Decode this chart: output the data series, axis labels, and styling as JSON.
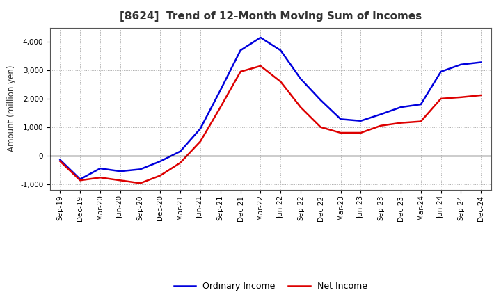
{
  "title": "[8624]  Trend of 12-Month Moving Sum of Incomes",
  "ylabel": "Amount (million yen)",
  "ylim": [
    -1200,
    4500
  ],
  "yticks": [
    -1000,
    0,
    1000,
    2000,
    3000,
    4000
  ],
  "background_color": "#ffffff",
  "grid_color": "#aaaaaa",
  "labels": [
    "Sep-19",
    "Dec-19",
    "Mar-20",
    "Jun-20",
    "Sep-20",
    "Dec-20",
    "Mar-21",
    "Jun-21",
    "Sep-21",
    "Dec-21",
    "Mar-22",
    "Jun-22",
    "Sep-22",
    "Dec-22",
    "Mar-23",
    "Jun-23",
    "Sep-23",
    "Dec-23",
    "Mar-24",
    "Jun-24",
    "Sep-24",
    "Dec-24"
  ],
  "ordinary_income": [
    -150,
    -830,
    -450,
    -550,
    -480,
    -200,
    150,
    950,
    2300,
    3700,
    4150,
    3700,
    2700,
    1950,
    1280,
    1220,
    1450,
    1700,
    1800,
    2950,
    3200,
    3280
  ],
  "net_income": [
    -200,
    -870,
    -770,
    -870,
    -970,
    -700,
    -250,
    500,
    1700,
    2950,
    3150,
    2600,
    1700,
    1000,
    800,
    800,
    1050,
    1150,
    1200,
    2000,
    2050,
    2120
  ],
  "ordinary_color": "#0000dd",
  "net_color": "#dd0000",
  "line_width": 1.8,
  "title_color": "#333333",
  "title_fontsize": 11,
  "legend_ordinary": "Ordinary Income",
  "legend_net": "Net Income",
  "tick_fontsize": 7.5,
  "ylabel_fontsize": 8.5
}
